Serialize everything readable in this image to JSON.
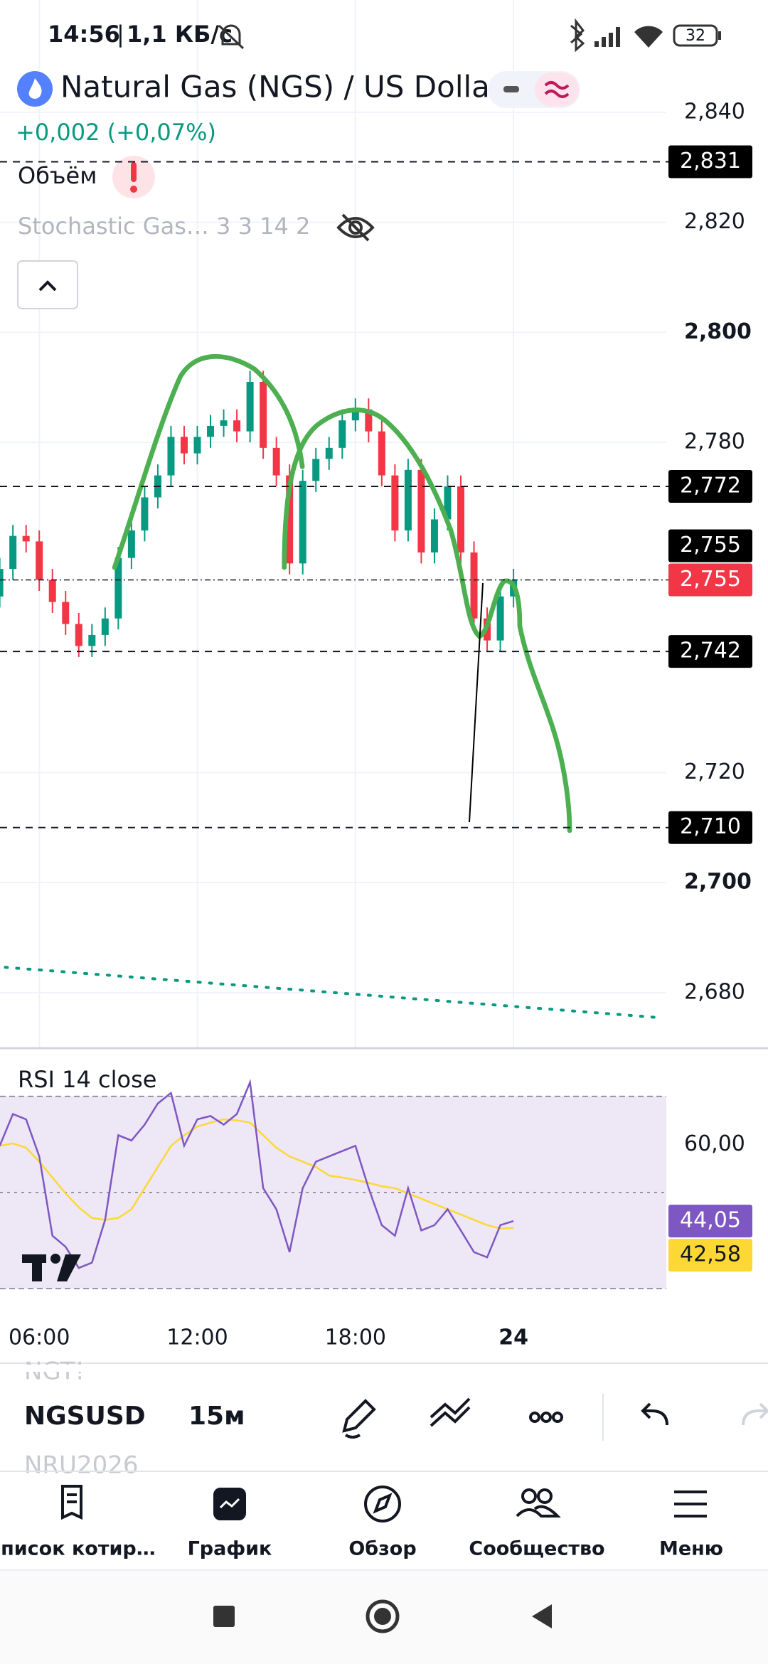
{
  "status_bar": {
    "time": "14:56",
    "network": "1,1 КБ/с",
    "battery": "32"
  },
  "header": {
    "symbol": "Natural Gas (NGS) / US Dollar",
    "change": "+0,002 (+0,07%)",
    "volume": "Объём",
    "stochastic": "Stochastic Gas…  3 3 14 2"
  },
  "chart_data": [
    {
      "type": "candlestick",
      "x": [
        4.5,
        5,
        5.5,
        6,
        6.5,
        7,
        7.5,
        8,
        8.5,
        9,
        9.5,
        10,
        10.5,
        11,
        11.5,
        12,
        12.5,
        13,
        13.5,
        14,
        14.5,
        15,
        15.5,
        16,
        16.5,
        17,
        17.5,
        18,
        18.5,
        19,
        19.5,
        20,
        20.5,
        21,
        21.5,
        22,
        22.5,
        23,
        23.5,
        24
      ],
      "open": [
        2.752,
        2.757,
        2.763,
        2.762,
        2.755,
        2.751,
        2.747,
        2.743,
        2.745,
        2.748,
        2.759,
        2.764,
        2.77,
        2.774,
        2.781,
        2.778,
        2.781,
        2.783,
        2.784,
        2.782,
        2.791,
        2.779,
        2.774,
        2.758,
        2.773,
        2.777,
        2.779,
        2.784,
        2.786,
        2.782,
        2.774,
        2.764,
        2.775,
        2.76,
        2.766,
        2.772,
        2.76,
        2.748,
        2.744,
        2.752
      ],
      "high": [
        2.759,
        2.765,
        2.765,
        2.764,
        2.757,
        2.753,
        2.749,
        2.747,
        2.75,
        2.761,
        2.766,
        2.772,
        2.776,
        2.783,
        2.783,
        2.783,
        2.785,
        2.786,
        2.786,
        2.793,
        2.793,
        2.781,
        2.776,
        2.775,
        2.779,
        2.781,
        2.786,
        2.788,
        2.788,
        2.784,
        2.776,
        2.777,
        2.777,
        2.768,
        2.774,
        2.774,
        2.762,
        2.75,
        2.754,
        2.757
      ],
      "low": [
        2.75,
        2.755,
        2.76,
        2.753,
        2.749,
        2.745,
        2.741,
        2.741,
        2.743,
        2.746,
        2.757,
        2.762,
        2.768,
        2.772,
        2.776,
        2.776,
        2.779,
        2.781,
        2.78,
        2.78,
        2.777,
        2.772,
        2.756,
        2.756,
        2.771,
        2.775,
        2.777,
        2.782,
        2.78,
        2.772,
        2.762,
        2.762,
        2.758,
        2.758,
        2.764,
        2.758,
        2.746,
        2.742,
        2.742,
        2.75
      ],
      "close": [
        2.757,
        2.763,
        2.762,
        2.755,
        2.751,
        2.747,
        2.743,
        2.745,
        2.748,
        2.759,
        2.764,
        2.77,
        2.774,
        2.781,
        2.778,
        2.781,
        2.783,
        2.784,
        2.782,
        2.791,
        2.779,
        2.774,
        2.758,
        2.773,
        2.777,
        2.779,
        2.784,
        2.786,
        2.782,
        2.774,
        2.764,
        2.775,
        2.76,
        2.766,
        2.772,
        2.76,
        2.748,
        2.744,
        2.752,
        2.755
      ],
      "up_color": "#089981",
      "down_color": "#f23645",
      "xlim": [
        4.51,
        29.8
      ],
      "xticks": [
        {
          "value": 6,
          "label": "06:00"
        },
        {
          "value": 12,
          "label": "12:00"
        },
        {
          "value": 18,
          "label": "18:00"
        },
        24
      ],
      "ylim": [
        2.6699,
        2.8604
      ],
      "yticks": [
        {
          "value": 2.84,
          "label": "2,840"
        },
        {
          "value": 2.82,
          "label": "2,820"
        },
        {
          "value": 2.8,
          "label": "2,800"
        },
        {
          "value": 2.78,
          "label": "2,780"
        },
        {
          "value": 2.72,
          "label": "2,720"
        },
        {
          "value": 2.7,
          "label": "2,700"
        },
        {
          "value": 2.68,
          "label": "2,680"
        }
      ],
      "grid": true,
      "horizontal_lines": [
        {
          "value": 2.831,
          "label": "2,831"
        },
        {
          "value": 2.772,
          "label": "2,772"
        },
        {
          "value": 2.742,
          "label": "2,742"
        },
        {
          "value": 2.71,
          "label": "2,710"
        }
      ],
      "price_labels": [
        {
          "value": 2.755,
          "label": "2,755",
          "color": "#000000"
        },
        {
          "value": 2.755,
          "label": "2,755",
          "color": "#f23645"
        }
      ],
      "trend_line": {
        "x": [
          4.71,
          29.68
        ],
        "values": [
          2.6846,
          2.6754
        ],
        "color": "#089981"
      }
    },
    {
      "type": "line",
      "title": "RSI 14 close",
      "x": [
        4.5,
        5,
        5.5,
        6,
        6.5,
        7,
        7.5,
        8,
        8.5,
        9,
        9.5,
        10,
        10.5,
        11,
        11.5,
        12,
        12.5,
        13,
        13.5,
        14,
        14.5,
        15,
        15.5,
        16,
        16.5,
        17,
        17.5,
        18,
        18.5,
        19,
        19.5,
        20,
        20.5,
        21,
        21.5,
        22,
        22.5,
        23,
        23.5,
        24
      ],
      "series": [
        {
          "color": "#7e57c2",
          "last_label": "44,05",
          "values": [
            59.7,
            66.3,
            65.2,
            57.5,
            41.0,
            38.7,
            34.3,
            35.4,
            44.3,
            61.9,
            60.8,
            64.1,
            68.5,
            70.7,
            59.7,
            65.2,
            65.9,
            64.1,
            66.3,
            72.9,
            50.9,
            46.5,
            37.6,
            50.9,
            56.4,
            57.5,
            58.6,
            59.7,
            50.9,
            43.2,
            41.0,
            50.9,
            42.1,
            43.2,
            46.5,
            42.1,
            37.6,
            36.5,
            43.2,
            44.05
          ]
        },
        {
          "color": "#fdd835",
          "last_label": "42,58",
          "values": [
            59.7,
            60.2,
            59.3,
            56.4,
            53.1,
            49.8,
            46.9,
            44.7,
            44.3,
            44.7,
            46.5,
            50.9,
            55.3,
            59.7,
            61.9,
            63.7,
            64.5,
            65.2,
            65.0,
            64.5,
            61.9,
            59.3,
            57.5,
            56.4,
            55.3,
            53.5,
            53.1,
            52.6,
            52.0,
            51.3,
            50.9,
            49.8,
            48.7,
            47.6,
            46.5,
            45.4,
            44.3,
            43.2,
            42.5,
            42.58
          ]
        }
      ],
      "xlim": [
        4.51,
        29.8
      ],
      "ylim": [
        24.4,
        80
      ],
      "yticks": [
        {
          "value": 60,
          "label": "60,00"
        }
      ],
      "bands": [
        70,
        50,
        30
      ]
    }
  ],
  "toolbar": {
    "prev_symbol": "NGT!",
    "symbol": "NGSUSD",
    "interval": "15м",
    "next_symbol": "NRU2026"
  },
  "nav": {
    "items": [
      "Список котир…",
      "График",
      "Обзор",
      "Сообщество",
      "Меню"
    ]
  }
}
